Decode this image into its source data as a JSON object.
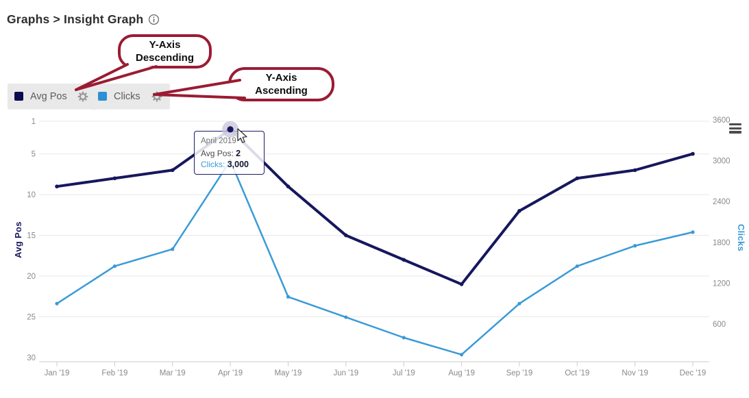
{
  "header": {
    "title": "Graphs > Insight Graph"
  },
  "icons": {
    "header_info": "info-circle",
    "legend_settings": "gear",
    "chart_menu": "hamburger-menu"
  },
  "legend": {
    "buttons": [
      {
        "label": "Avg Pos",
        "color": "#0c0c50"
      },
      {
        "label": "Clicks",
        "color": "#2d8fd5"
      }
    ]
  },
  "callouts": [
    {
      "line1": "Y-Axis",
      "line2": "Descending"
    },
    {
      "line1": "Y-Axis",
      "line2": "Ascending"
    }
  ],
  "tooltip": {
    "title": "April 2019",
    "rows": [
      {
        "label": "Avg Pos:",
        "value": "2"
      },
      {
        "label": "Clicks:",
        "value": "3,000"
      }
    ]
  },
  "colors": {
    "callout_red": "#9b1b33",
    "grid": "#e8e8e8",
    "axis_line": "#cccccc",
    "axis_text": "#8a8a8a",
    "button_bg": "#e9e9e9",
    "tooltip_border": "#1a1a66",
    "halo": "#c7c4da",
    "avg_pos": "#17175e",
    "clicks": "#3a9ad7"
  },
  "chart_data": {
    "type": "line",
    "title": "Insight Graph",
    "categories": [
      "Jan '19",
      "Feb '19",
      "Mar '19",
      "Apr '19",
      "May '19",
      "Jun '19",
      "Jul '19",
      "Aug '19",
      "Sep '19",
      "Oct '19",
      "Nov '19",
      "Dec '19"
    ],
    "series": [
      {
        "name": "Avg Pos",
        "axis": "left",
        "color": "#17175e",
        "values": [
          9,
          8,
          7,
          2,
          9,
          15,
          18,
          21,
          12,
          8,
          7,
          5
        ]
      },
      {
        "name": "Clicks",
        "axis": "right",
        "color": "#3a9ad7",
        "values": [
          900,
          1450,
          1700,
          3000,
          1000,
          700,
          400,
          150,
          900,
          1450,
          1750,
          1950
        ]
      }
    ],
    "left_axis": {
      "label": "Avg Pos",
      "ticks": [
        1,
        5,
        10,
        15,
        20,
        25,
        30
      ],
      "range": [
        1,
        30
      ],
      "direction": "descending"
    },
    "right_axis": {
      "label": "Clicks",
      "ticks": [
        3600,
        3000,
        2400,
        1800,
        1200,
        600
      ],
      "range": [
        600,
        3600
      ],
      "direction": "ascending"
    },
    "grid": true,
    "legend_position": "top-left",
    "hover": {
      "category_index": 3,
      "series": "Avg Pos"
    }
  }
}
